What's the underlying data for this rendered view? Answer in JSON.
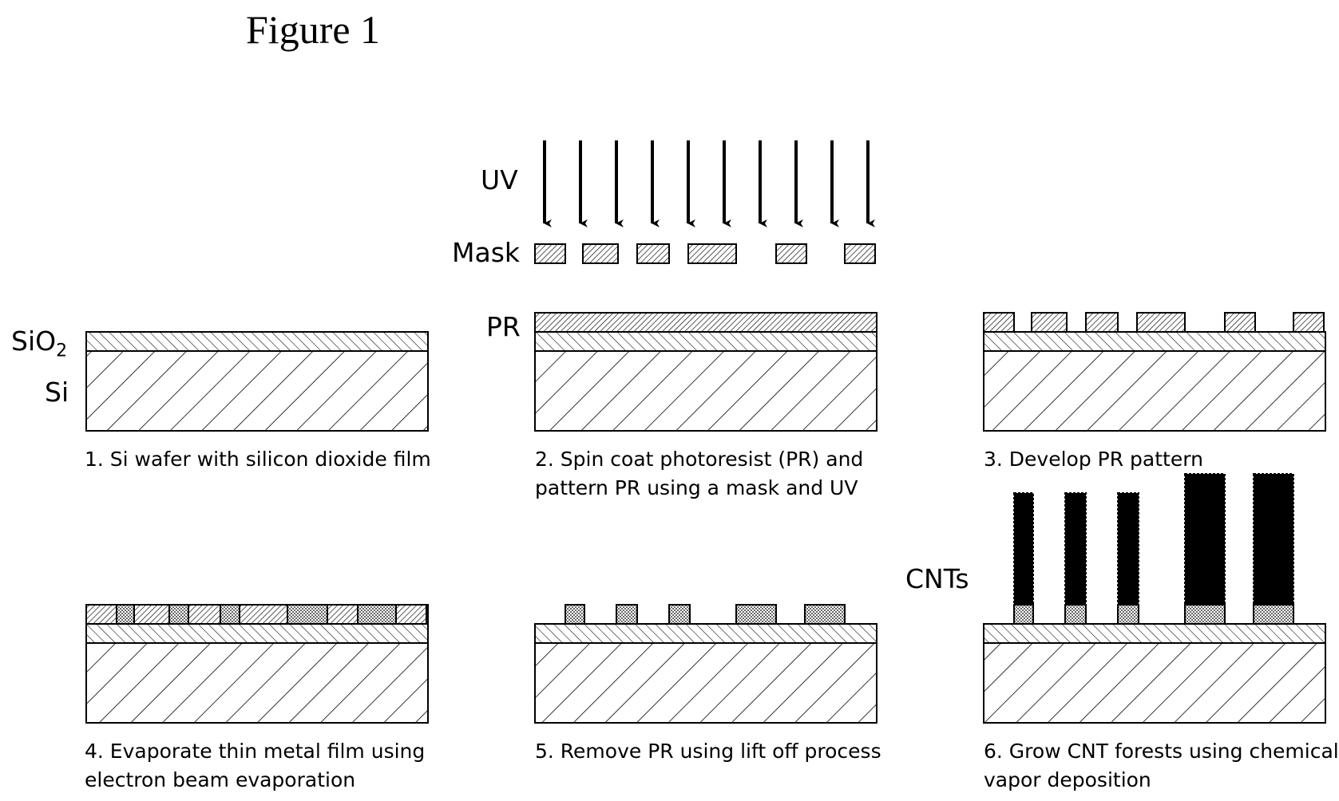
{
  "figure_title": "Figure 1",
  "labels": {
    "uv": "UV",
    "mask": "Mask",
    "sio2_main": "SiO",
    "sio2_sub": "2",
    "si": "Si",
    "pr": "PR",
    "cnts": "CNTs"
  },
  "captions": {
    "step1": [
      "1. Si wafer with silicon dioxide film"
    ],
    "step2": [
      "2. Spin coat photoresist (PR) and",
      "pattern PR using a mask and UV"
    ],
    "step3": [
      "3. Develop PR pattern"
    ],
    "step4": [
      "4. Evaporate thin metal film using",
      "electron beam evaporation"
    ],
    "step5": [
      "5. Remove PR using lift off process"
    ],
    "step6": [
      "6. Grow CNT forests using chemical",
      "vapor deposition"
    ]
  },
  "colors": {
    "line": "#000000",
    "background": "#ffffff",
    "cnt_fill": "#000000"
  }
}
